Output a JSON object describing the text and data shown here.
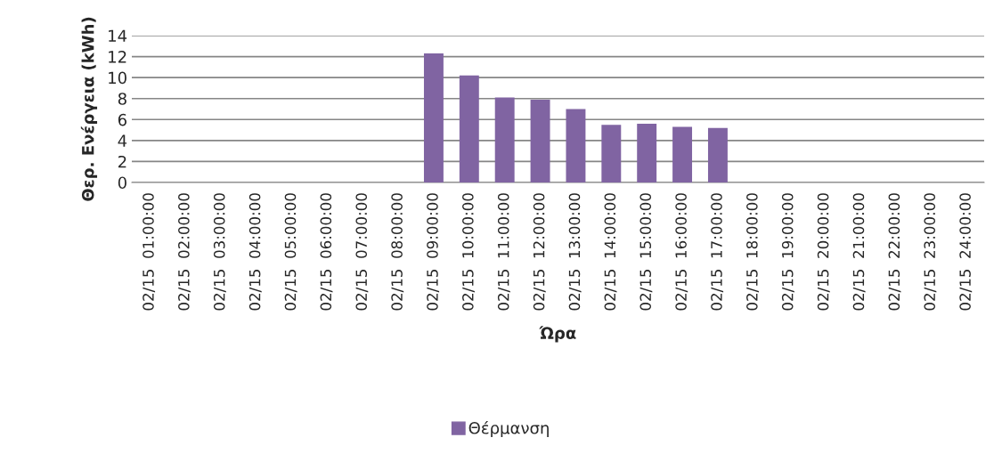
{
  "chart_data": {
    "type": "bar",
    "xlabel": "Ώρα",
    "ylabel": "Θερ. Ενέργεια (kWh)",
    "categories": [
      "02/15  01:00:00",
      "02/15  02:00:00",
      "02/15  03:00:00",
      "02/15  04:00:00",
      "02/15  05:00:00",
      "02/15  06:00:00",
      "02/15  07:00:00",
      "02/15  08:00:00",
      "02/15  09:00:00",
      "02/15  10:00:00",
      "02/15  11:00:00",
      "02/15  12:00:00",
      "02/15  13:00:00",
      "02/15  14:00:00",
      "02/15  15:00:00",
      "02/15  16:00:00",
      "02/15  17:00:00",
      "02/15  18:00:00",
      "02/15  19:00:00",
      "02/15  20:00:00",
      "02/15  21:00:00",
      "02/15  22:00:00",
      "02/15  23:00:00",
      "02/15  24:00:00"
    ],
    "series": [
      {
        "name": "Θέρμανση",
        "color": "#8064a2",
        "values": [
          null,
          null,
          null,
          null,
          null,
          null,
          null,
          null,
          12.3,
          10.2,
          8.1,
          7.9,
          7.0,
          5.5,
          5.6,
          5.3,
          5.2,
          null,
          null,
          null,
          null,
          null,
          null,
          null
        ]
      }
    ],
    "ylim": [
      0,
      14
    ],
    "yticks": [
      0,
      2,
      4,
      6,
      8,
      10,
      12,
      14
    ],
    "grid": "y",
    "legend": "bottom"
  }
}
